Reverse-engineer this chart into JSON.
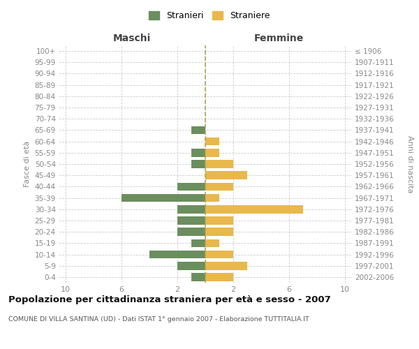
{
  "age_groups": [
    "0-4",
    "5-9",
    "10-14",
    "15-19",
    "20-24",
    "25-29",
    "30-34",
    "35-39",
    "40-44",
    "45-49",
    "50-54",
    "55-59",
    "60-64",
    "65-69",
    "70-74",
    "75-79",
    "80-84",
    "85-89",
    "90-94",
    "95-99",
    "100+"
  ],
  "birth_years": [
    "2002-2006",
    "1997-2001",
    "1992-1996",
    "1987-1991",
    "1982-1986",
    "1977-1981",
    "1972-1976",
    "1967-1971",
    "1962-1966",
    "1957-1961",
    "1952-1956",
    "1947-1951",
    "1942-1946",
    "1937-1941",
    "1932-1936",
    "1927-1931",
    "1922-1926",
    "1917-1921",
    "1912-1916",
    "1907-1911",
    "≤ 1906"
  ],
  "maschi": [
    1,
    2,
    4,
    1,
    2,
    2,
    2,
    6,
    2,
    0,
    1,
    1,
    0,
    1,
    0,
    0,
    0,
    0,
    0,
    0,
    0
  ],
  "femmine": [
    2,
    3,
    2,
    1,
    2,
    2,
    7,
    1,
    2,
    3,
    2,
    1,
    1,
    0,
    0,
    0,
    0,
    0,
    0,
    0,
    0
  ],
  "maschi_color": "#6b8e5e",
  "femmine_color": "#e8b84b",
  "title": "Popolazione per cittadinanza straniera per età e sesso - 2007",
  "subtitle": "COMUNE DI VILLA SANTINA (UD) - Dati ISTAT 1° gennaio 2007 - Elaborazione TUTTITALIA.IT",
  "label_maschi": "Maschi",
  "label_femmine": "Femmine",
  "ylabel_left": "Fasce di età",
  "ylabel_right": "Anni di nascita",
  "legend_stranieri": "Stranieri",
  "legend_straniere": "Straniere",
  "xlim": 10.5,
  "bar_height": 0.72,
  "background_color": "#ffffff",
  "grid_color": "#cccccc",
  "tick_color": "#888888",
  "center_line_color": "#aaa855",
  "title_fontsize": 9.5,
  "subtitle_fontsize": 6.8,
  "tick_fontsize": 7.5,
  "xtick_fontsize": 8.0
}
